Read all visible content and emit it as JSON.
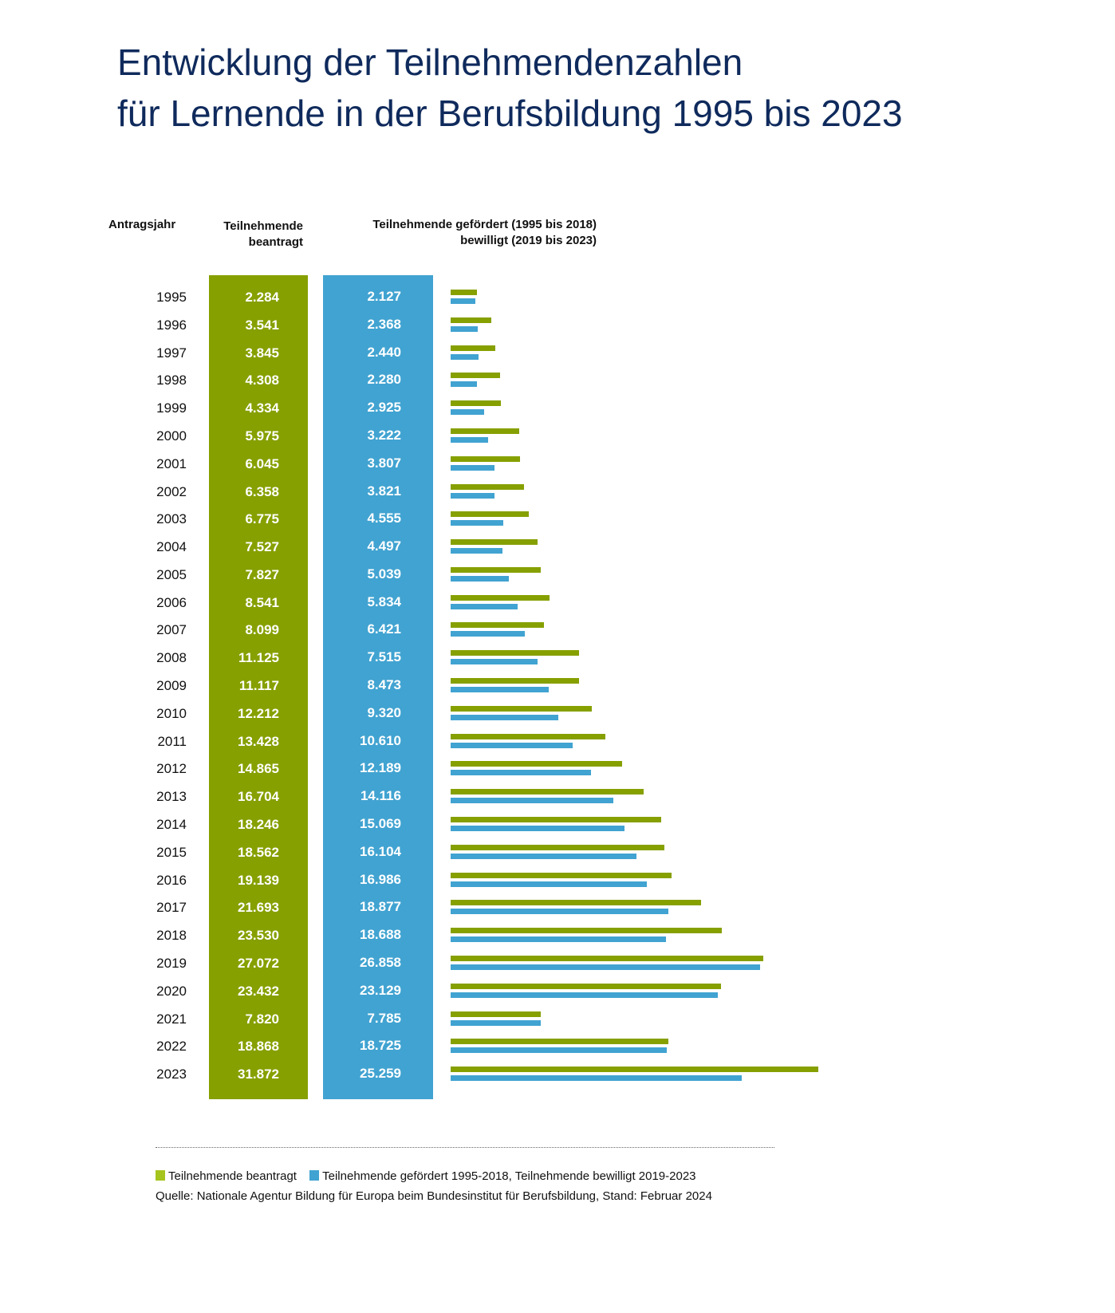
{
  "title_line1": "Entwicklung der Teilnehmendenzahlen",
  "title_line2": "für Lernende in der Berufsbildung 1995 bis 2023",
  "headers": {
    "year": "Antragsjahr",
    "applied_line1": "Teilnehmende",
    "applied_line2": "beantragt",
    "funded_line1": "Teilnehmende gefördert (1995 bis 2018)",
    "funded_line2": "bewilligt (2019 bis 2023)"
  },
  "colors": {
    "applied": "#86a000",
    "funded": "#41a3d1",
    "title": "#0f2a5c"
  },
  "chart_data": {
    "type": "bar",
    "orientation": "horizontal",
    "categories": [
      "1995",
      "1996",
      "1997",
      "1998",
      "1999",
      "2000",
      "2001",
      "2002",
      "2003",
      "2004",
      "2005",
      "2006",
      "2007",
      "2008",
      "2009",
      "2010",
      "2011",
      "2012",
      "2013",
      "2014",
      "2015",
      "2016",
      "2017",
      "2018",
      "2019",
      "2020",
      "2021",
      "2022",
      "2023"
    ],
    "series": [
      {
        "name": "Teilnehmende beantragt",
        "values": [
          2284,
          3541,
          3845,
          4308,
          4334,
          5975,
          6045,
          6358,
          6775,
          7527,
          7827,
          8541,
          8099,
          11125,
          11117,
          12212,
          13428,
          14865,
          16704,
          18246,
          18562,
          19139,
          21693,
          23530,
          27072,
          23432,
          7820,
          18868,
          31872
        ],
        "labels": [
          "2.284",
          "3.541",
          "3.845",
          "4.308",
          "4.334",
          "5.975",
          "6.045",
          "6.358",
          "6.775",
          "7.527",
          "7.827",
          "8.541",
          "8.099",
          "11.125",
          "11.117",
          "12.212",
          "13.428",
          "14.865",
          "16.704",
          "18.246",
          "18.562",
          "19.139",
          "21.693",
          "23.530",
          "27.072",
          "23.432",
          "7.820",
          "18.868",
          "31.872"
        ]
      },
      {
        "name": "Teilnehmende gefördert 1995-2018, Teilnehmende bewilligt 2019-2023",
        "values": [
          2127,
          2368,
          2440,
          2280,
          2925,
          3222,
          3807,
          3821,
          4555,
          4497,
          5039,
          5834,
          6421,
          7515,
          8473,
          9320,
          10610,
          12189,
          14116,
          15069,
          16104,
          16986,
          18877,
          18688,
          26858,
          23129,
          7785,
          18725,
          25259
        ],
        "labels": [
          "2.127",
          "2.368",
          "2.440",
          "2.280",
          "2.925",
          "3.222",
          "3.807",
          "3.821",
          "4.555",
          "4.497",
          "5.039",
          "5.834",
          "6.421",
          "7.515",
          "8.473",
          "9.320",
          "10.610",
          "12.189",
          "14.116",
          "15.069",
          "16.104",
          "16.986",
          "18.877",
          "18.688",
          "26.858",
          "23.129",
          "7.785",
          "18.725",
          "25.259"
        ]
      }
    ],
    "xlim": [
      0,
      31872
    ],
    "grid": false,
    "legend_position": "bottom"
  },
  "legend": {
    "applied": "Teilnehmende beantragt",
    "funded": "Teilnehmende gefördert 1995-2018, Teilnehmende bewilligt 2019-2023",
    "source": "Quelle: Nationale Agentur Bildung für Europa beim Bundesinstitut für Berufsbildung, Stand: Februar 2024"
  }
}
